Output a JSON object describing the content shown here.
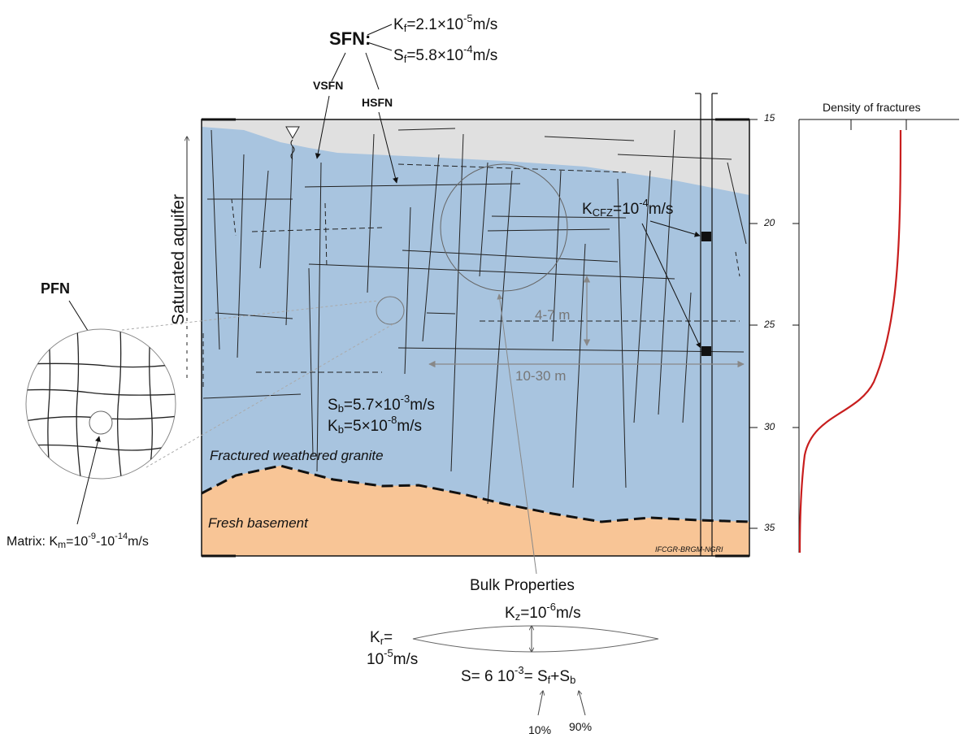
{
  "sfn": {
    "label": "SFN:",
    "kf": {
      "sym": "K",
      "sub": "f",
      "pre": "=2.1×10",
      "exp": "-5",
      "unit": "m/s"
    },
    "sf": {
      "sym": "S",
      "sub": "f",
      "pre": "=5.8×10",
      "exp": "-4",
      "unit": "m/s"
    },
    "vsfn": "VSFN",
    "hsfn": "HSFN"
  },
  "saturated_label": "Saturated aquifer",
  "pfn_label": "PFN",
  "matrix": {
    "prefix": "Matrix: K",
    "sub": "m",
    "pre": "=10",
    "exp1": "-9",
    "mid": "-10",
    "exp2": "-14",
    "unit": "m/s"
  },
  "kcfz": {
    "sym": "K",
    "sub": "CFZ",
    "pre": "=10",
    "exp": "-4",
    "unit": "m/s"
  },
  "dims": {
    "vertical": "4-7 m",
    "horizontal": "10-30 m"
  },
  "block": {
    "sb": {
      "sym": "S",
      "sub": "b",
      "pre": "=5.7×10",
      "exp": "-3",
      "unit": "m/s"
    },
    "kb": {
      "sym": "K",
      "sub": "b",
      "pre": "=5×10",
      "exp": "-8",
      "unit": "m/s"
    }
  },
  "layers": {
    "weathered": "Fractured weathered granite",
    "fresh": "Fresh basement"
  },
  "credit": "IFCGR-BRGM-NGRI",
  "depth_ticks": [
    "15",
    "20",
    "25",
    "30",
    "35"
  ],
  "density_title": "Density of fractures",
  "bulk": {
    "title": "Bulk Properties",
    "kz": {
      "sym": "K",
      "sub": "z",
      "pre": "=10",
      "exp": "-6",
      "unit": "m/s"
    },
    "kr": {
      "sym": "K",
      "sub": "r",
      "eq": "=",
      "line2_base": "10",
      "line2_exp": "-5",
      "line2_unit": "m/s"
    },
    "s": {
      "pre": "S= 6 10",
      "exp": "-3",
      "eq": "= S",
      "sub1": "f",
      "plus": "+S",
      "sub2": "b"
    },
    "pct_f": "10%",
    "pct_b": "90%"
  },
  "colors": {
    "aquifer": "#a8c4df",
    "unsaturated": "#e0e0e0",
    "basement": "#f8c596",
    "density_curve": "#c81e1e"
  }
}
